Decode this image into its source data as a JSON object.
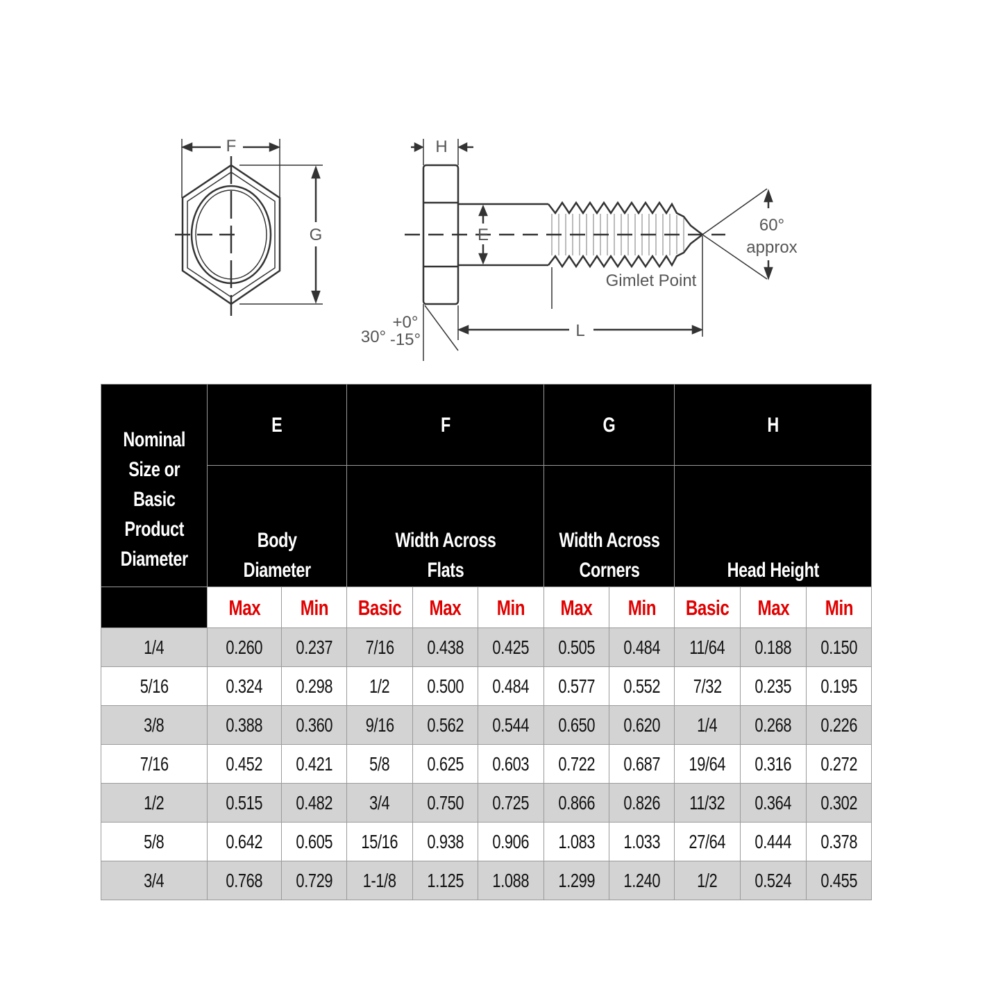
{
  "diagram": {
    "labels": {
      "F": "F",
      "G": "G",
      "H": "H",
      "E": "E",
      "L": "L",
      "angle_60": "60°",
      "approx": "approx",
      "gimlet": "Gimlet Point",
      "angle_30": "30°",
      "tol_plus": "+0°",
      "tol_minus": "-15°"
    },
    "line_color": "#333333"
  },
  "table": {
    "first_header": "Nominal\nSize or\nBasic\nProduct\nDiameter",
    "groups": [
      {
        "letter": "E",
        "desc": "Body\nDiameter",
        "subs": [
          "Max",
          "Min"
        ]
      },
      {
        "letter": "F",
        "desc": "Width Across\nFlats",
        "subs": [
          "Basic",
          "Max",
          "Min"
        ]
      },
      {
        "letter": "G",
        "desc": "Width Across\nCorners",
        "subs": [
          "Max",
          "Min"
        ]
      },
      {
        "letter": "H",
        "desc": "Head Height",
        "subs": [
          "Basic",
          "Max",
          "Min"
        ]
      }
    ],
    "rows": [
      [
        "1/4",
        "0.260",
        "0.237",
        "7/16",
        "0.438",
        "0.425",
        "0.505",
        "0.484",
        "11/64",
        "0.188",
        "0.150"
      ],
      [
        "5/16",
        "0.324",
        "0.298",
        "1/2",
        "0.500",
        "0.484",
        "0.577",
        "0.552",
        "7/32",
        "0.235",
        "0.195"
      ],
      [
        "3/8",
        "0.388",
        "0.360",
        "9/16",
        "0.562",
        "0.544",
        "0.650",
        "0.620",
        "1/4",
        "0.268",
        "0.226"
      ],
      [
        "7/16",
        "0.452",
        "0.421",
        "5/8",
        "0.625",
        "0.603",
        "0.722",
        "0.687",
        "19/64",
        "0.316",
        "0.272"
      ],
      [
        "1/2",
        "0.515",
        "0.482",
        "3/4",
        "0.750",
        "0.725",
        "0.866",
        "0.826",
        "11/32",
        "0.364",
        "0.302"
      ],
      [
        "5/8",
        "0.642",
        "0.605",
        "15/16",
        "0.938",
        "0.906",
        "1.083",
        "1.033",
        "27/64",
        "0.444",
        "0.378"
      ],
      [
        "3/4",
        "0.768",
        "0.729",
        "1-1/8",
        "1.125",
        "1.088",
        "1.299",
        "1.240",
        "1/2",
        "0.524",
        "0.455"
      ]
    ],
    "colors": {
      "header_bg": "#000000",
      "sub_text": "#e00000",
      "stripe": "#d3d3d3"
    }
  }
}
